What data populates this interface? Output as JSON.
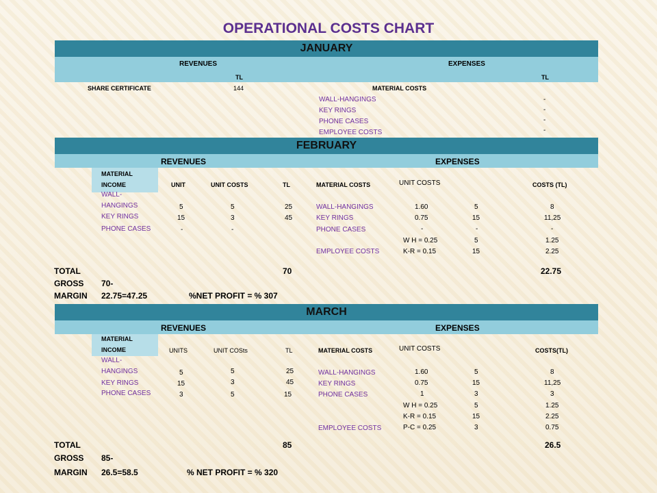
{
  "title": "OPERATIONAL COSTS CHART",
  "january": {
    "month": "JANUARY",
    "revenues": "REVENUES",
    "expenses": "EXPENSES",
    "tl_rev": "TL",
    "tl_exp": "TL",
    "share_certificate": "SHARE CERTIFICATE",
    "share_value": "144",
    "material_costs": "MATERIAL COSTS",
    "expense_items": [
      "WALL-HANGINGS",
      "KEY RINGS",
      "PHONE CASES",
      "EMPLOYEE COSTS"
    ],
    "expense_values": [
      "-",
      "-",
      "-",
      "-"
    ]
  },
  "february": {
    "month": "FEBRUARY",
    "revenues": "REVENUES",
    "expenses": "EXPENSES",
    "headers": {
      "material_income_1": "MATERIAL",
      "material_income_2": "INCOME",
      "unit": "UNIT",
      "unit_costs": "UNIT COSTS",
      "tl": "TL",
      "material_costs": "MATERIAL COSTS",
      "exp_unit_costs": "UNIT COSTS",
      "costs": "COSTS (TL)"
    },
    "rev_items": [
      "WALL-",
      "HANGINGS",
      "KEY RINGS",
      "PHONE CASES"
    ],
    "rev_rows": [
      {
        "unit": "5",
        "unit_cost": "5",
        "tl": "25"
      },
      {
        "unit": "15",
        "unit_cost": "3",
        "tl": "45"
      },
      {
        "unit": "-",
        "unit_cost": "-",
        "tl": ""
      }
    ],
    "exp_items": [
      "WALL-HANGINGS",
      "KEY RINGS",
      "PHONE CASES",
      "EMPLOYEE COSTS"
    ],
    "exp_rows": [
      {
        "unit_cost": "1.60",
        "qty": "5",
        "cost": "8"
      },
      {
        "unit_cost": "0.75",
        "qty": "15",
        "cost": "11,25"
      },
      {
        "unit_cost": "-",
        "qty": "-",
        "cost": "-"
      },
      {
        "unit_cost": "W H = 0.25",
        "qty": "5",
        "cost": "1.25"
      },
      {
        "unit_cost": "K-R = 0.15",
        "qty": "15",
        "cost": "2.25"
      }
    ],
    "total_label": "TOTAL",
    "total_rev": "70",
    "total_exp": "22.75",
    "gross_label": "GROSS",
    "gross_value": "70-",
    "margin_label": "MARGIN",
    "margin_value": "22.75=47.25",
    "net_profit": "%NET PROFIT = % 307"
  },
  "march": {
    "month": "MARCH",
    "revenues": "REVENUES",
    "expenses": "EXPENSES",
    "headers": {
      "material_income_1": "MATERIAL",
      "material_income_2": "INCOME",
      "unit": "UNITS",
      "unit_costs": "UNIT COSts",
      "tl": "TL",
      "material_costs": "MATERIAL COSTS",
      "exp_unit_costs": "UNIT COSTS",
      "costs": "COSTS(TL)"
    },
    "rev_items": [
      "WALL-",
      "HANGINGS",
      "KEY RINGS",
      "PHONE CASES"
    ],
    "rev_rows": [
      {
        "unit": "5",
        "unit_cost": "5",
        "tl": "25"
      },
      {
        "unit": "15",
        "unit_cost": "3",
        "tl": "45"
      },
      {
        "unit": "3",
        "unit_cost": "5",
        "tl": "15"
      }
    ],
    "exp_items": [
      "WALL-HANGINGS",
      "KEY RINGS",
      "PHONE CASES",
      "EMPLOYEE COSTS"
    ],
    "exp_rows": [
      {
        "unit_cost": "1.60",
        "qty": "5",
        "cost": "8"
      },
      {
        "unit_cost": "0.75",
        "qty": "15",
        "cost": "11,25"
      },
      {
        "unit_cost": "1",
        "qty": "3",
        "cost": "3"
      },
      {
        "unit_cost": "W H = 0.25",
        "qty": "5",
        "cost": "1.25"
      },
      {
        "unit_cost": "K-R = 0.15",
        "qty": "15",
        "cost": "2.25"
      },
      {
        "unit_cost": "P-C = 0.25",
        "qty": "3",
        "cost": "0.75"
      }
    ],
    "total_label": "TOTAL",
    "total_rev": "85",
    "total_exp": "26.5",
    "gross_label": "GROSS",
    "gross_value": "85-",
    "margin_label": "MARGIN",
    "margin_value": "26.5=58.5",
    "net_profit": "% NET PROFIT = % 320"
  }
}
